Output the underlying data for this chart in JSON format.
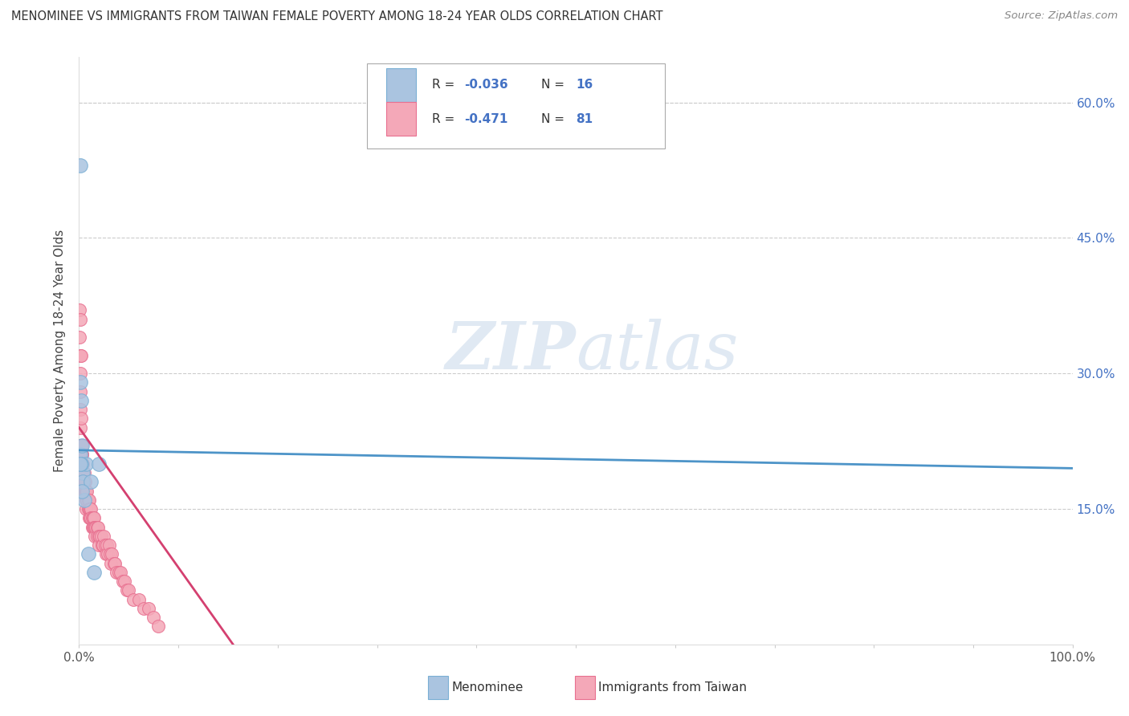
{
  "title": "MENOMINEE VS IMMIGRANTS FROM TAIWAN FEMALE POVERTY AMONG 18-24 YEAR OLDS CORRELATION CHART",
  "source": "Source: ZipAtlas.com",
  "ylabel": "Female Poverty Among 18-24 Year Olds",
  "xlim": [
    0,
    1.0
  ],
  "ylim": [
    0,
    0.65
  ],
  "xticklabels": [
    "0.0%",
    "",
    "",
    "",
    "",
    "",
    "",
    "",
    "",
    "",
    "100.0%"
  ],
  "ytick_labels_right": [
    "15.0%",
    "30.0%",
    "45.0%",
    "60.0%"
  ],
  "grid_color": "#cccccc",
  "background_color": "#ffffff",
  "menominee_color": "#aac4e0",
  "taiwan_color": "#f4a8b8",
  "menominee_edge": "#7aafd4",
  "taiwan_edge": "#e87090",
  "menominee_line_color": "#4d94c8",
  "taiwan_line_color": "#d44070",
  "legend_label_menominee": "Menominee",
  "legend_label_taiwan": "Immigrants from Taiwan",
  "watermark_zip": "ZIP",
  "watermark_atlas": "atlas",
  "menominee_x": [
    0.001,
    0.0015,
    0.002,
    0.003,
    0.0035,
    0.004,
    0.005,
    0.007,
    0.009,
    0.012,
    0.015,
    0.02,
    0.001,
    0.002,
    0.003,
    0.001
  ],
  "menominee_y": [
    0.53,
    0.21,
    0.27,
    0.22,
    0.19,
    0.18,
    0.16,
    0.2,
    0.1,
    0.18,
    0.08,
    0.2,
    0.29,
    0.2,
    0.17,
    0.2
  ],
  "taiwan_x": [
    0.0005,
    0.0008,
    0.001,
    0.001,
    0.001,
    0.001,
    0.0012,
    0.0013,
    0.0015,
    0.0015,
    0.002,
    0.002,
    0.002,
    0.0025,
    0.003,
    0.003,
    0.003,
    0.004,
    0.004,
    0.004,
    0.005,
    0.005,
    0.005,
    0.006,
    0.006,
    0.007,
    0.007,
    0.007,
    0.008,
    0.008,
    0.009,
    0.009,
    0.01,
    0.01,
    0.01,
    0.011,
    0.011,
    0.012,
    0.012,
    0.013,
    0.013,
    0.014,
    0.014,
    0.015,
    0.015,
    0.016,
    0.016,
    0.017,
    0.018,
    0.018,
    0.019,
    0.02,
    0.02,
    0.021,
    0.022,
    0.023,
    0.024,
    0.025,
    0.026,
    0.027,
    0.028,
    0.029,
    0.03,
    0.031,
    0.032,
    0.033,
    0.035,
    0.036,
    0.038,
    0.04,
    0.042,
    0.044,
    0.046,
    0.048,
    0.05,
    0.055,
    0.06,
    0.065,
    0.07,
    0.075,
    0.08
  ],
  "taiwan_y": [
    0.37,
    0.34,
    0.28,
    0.26,
    0.36,
    0.24,
    0.3,
    0.22,
    0.32,
    0.2,
    0.32,
    0.25,
    0.22,
    0.21,
    0.22,
    0.21,
    0.2,
    0.2,
    0.19,
    0.18,
    0.19,
    0.18,
    0.17,
    0.18,
    0.17,
    0.17,
    0.16,
    0.15,
    0.17,
    0.16,
    0.16,
    0.15,
    0.16,
    0.15,
    0.14,
    0.15,
    0.14,
    0.15,
    0.14,
    0.14,
    0.13,
    0.14,
    0.13,
    0.14,
    0.13,
    0.13,
    0.12,
    0.13,
    0.13,
    0.12,
    0.13,
    0.12,
    0.11,
    0.12,
    0.12,
    0.11,
    0.11,
    0.12,
    0.11,
    0.1,
    0.11,
    0.1,
    0.11,
    0.1,
    0.09,
    0.1,
    0.09,
    0.09,
    0.08,
    0.08,
    0.08,
    0.07,
    0.07,
    0.06,
    0.06,
    0.05,
    0.05,
    0.04,
    0.04,
    0.03,
    0.02
  ],
  "menominee_trendline_x": [
    0.0,
    1.0
  ],
  "menominee_trendline_y": [
    0.215,
    0.195
  ],
  "taiwan_trendline_x": [
    0.0,
    0.155
  ],
  "taiwan_trendline_y": [
    0.24,
    0.0
  ]
}
